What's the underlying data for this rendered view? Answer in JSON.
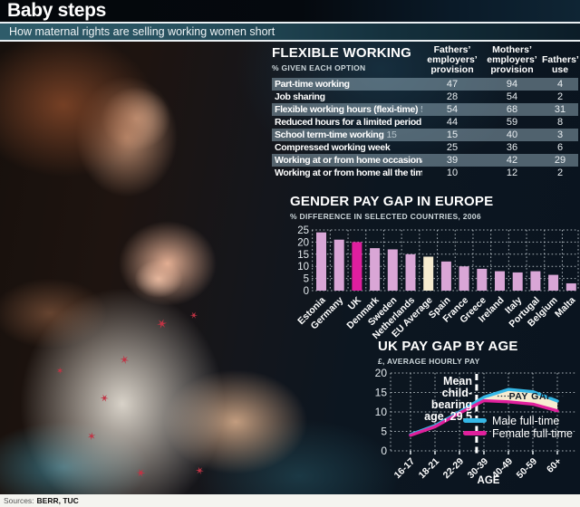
{
  "header": {
    "title": "Baby steps",
    "subtitle": "How maternal rights are selling working women short"
  },
  "flexible_working": {
    "title": "FLEXIBLE WORKING",
    "subtitle": "% GIVEN EACH OPTION",
    "columns": [
      "Fathers’ employers’ provision",
      "Mothers’ employers’ provision",
      "Fathers’ use"
    ],
    "rows": [
      {
        "label": "Part-time working",
        "ghost": "",
        "values": [
          47,
          94,
          4
        ]
      },
      {
        "label": "Job sharing",
        "ghost": "",
        "values": [
          28,
          54,
          2
        ]
      },
      {
        "label": "Flexible working hours (flexi-time)",
        "ghost": "54",
        "values": [
          54,
          68,
          31
        ]
      },
      {
        "label": "Reduced hours for a limited period",
        "ghost": "",
        "values": [
          44,
          59,
          8
        ]
      },
      {
        "label": "School term-time working",
        "ghost": "15",
        "values": [
          15,
          40,
          3
        ]
      },
      {
        "label": "Compressed working week",
        "ghost": "",
        "values": [
          25,
          36,
          6
        ]
      },
      {
        "label": "Working at or from home occasionally",
        "ghost": "",
        "values": [
          39,
          42,
          29
        ]
      },
      {
        "label": "Working at or from home all the time",
        "ghost": "",
        "values": [
          10,
          12,
          2
        ]
      }
    ]
  },
  "chart_data": [
    {
      "id": "europe",
      "type": "bar",
      "title": "GENDER PAY GAP IN EUROPE",
      "subtitle": "% DIFFERENCE IN SELECTED COUNTRIES, 2006",
      "categories": [
        "Estonia",
        "Germany",
        "UK",
        "Denmark",
        "Sweden",
        "Netherlands",
        "EU Average",
        "Spain",
        "France",
        "Greece",
        "Ireland",
        "Italy",
        "Portugal",
        "Belgium",
        "Malta"
      ],
      "values": [
        24,
        21,
        20,
        17.5,
        17,
        15,
        14,
        12,
        10,
        9,
        8,
        7.5,
        8,
        6.5,
        3
      ],
      "ylim": [
        0,
        25
      ],
      "yticks": [
        0,
        5,
        10,
        15,
        20,
        25
      ],
      "grid": true,
      "bar_colors": {
        "default": "#d9a6d6",
        "UK": "#df1f9f",
        "EU Average": "#f6ecd0"
      }
    },
    {
      "id": "uk_age",
      "type": "line",
      "title": "UK PAY GAP BY AGE",
      "subtitle": "£, AVERAGE HOURLY PAY",
      "categories": [
        "16-17",
        "18-21",
        "22-29",
        "30-39",
        "40-49",
        "50-59",
        "60+"
      ],
      "series": [
        {
          "name": "Male full-time",
          "color": "#35b7e6",
          "values": [
            4.2,
            6.5,
            10.0,
            13.8,
            15.8,
            15.2,
            12.8
          ]
        },
        {
          "name": "Female full-time",
          "color": "#e0209c",
          "values": [
            4.0,
            6.2,
            9.7,
            12.9,
            12.6,
            12.0,
            10.3
          ]
        }
      ],
      "xlabel": "AGE",
      "ylim": [
        0,
        20
      ],
      "yticks": [
        0,
        5,
        10,
        15,
        20
      ],
      "grid": true,
      "legend_position": "inside-bottom-right",
      "gap_fill": "#f6ecd0",
      "gap_label": "PAY GAP",
      "gap_start_index": 2,
      "annotation_lines": [
        "Mean",
        "child-",
        "bearing",
        "age, 29.5"
      ],
      "mean_line_pos": 2.7
    }
  ],
  "source": {
    "label": "Sources:",
    "value": "BERR, TUC"
  },
  "decor": {
    "star_glyph": "✶"
  }
}
